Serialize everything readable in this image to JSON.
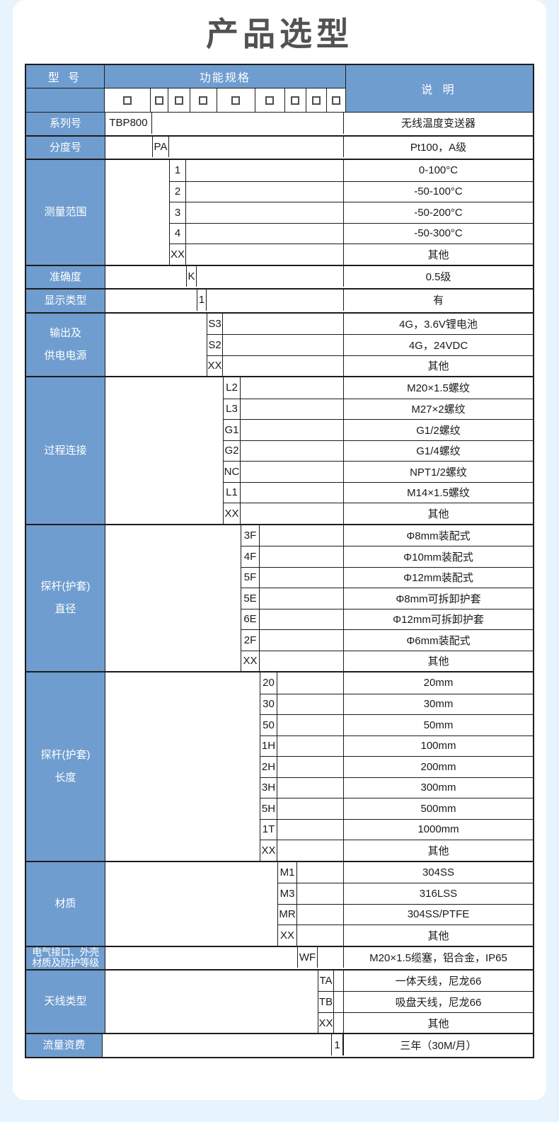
{
  "page": {
    "title": "产品选型"
  },
  "colors": {
    "accent_blue": "#6F9DCF",
    "page_background": "#E7F4FD",
    "card_background": "#FFFFFF",
    "border": "#1C1C1C",
    "title_gray": "#525252"
  },
  "table": {
    "header": {
      "model": "型 号",
      "spec": "功能规格",
      "desc": "说 明"
    },
    "checkbox_slots": 9,
    "groups": [
      {
        "label": "系列号",
        "items": [
          {
            "code": "TBP800",
            "desc": "无线温度变送器"
          }
        ]
      },
      {
        "label": "分度号",
        "items": [
          {
            "code": "PA",
            "desc": "Pt100，A级"
          }
        ]
      },
      {
        "label": "测量范围",
        "items": [
          {
            "code": "1",
            "desc": "0-100°C"
          },
          {
            "code": "2",
            "desc": "-50-100°C"
          },
          {
            "code": "3",
            "desc": "-50-200°C"
          },
          {
            "code": "4",
            "desc": "-50-300°C"
          },
          {
            "code": "XX",
            "desc": "其他"
          }
        ]
      },
      {
        "label": "准确度",
        "items": [
          {
            "code": "K",
            "desc": "0.5级"
          }
        ]
      },
      {
        "label": "显示类型",
        "items": [
          {
            "code": "1",
            "desc": "有"
          }
        ]
      },
      {
        "label": "输出及\n供电电源",
        "items": [
          {
            "code": "S3",
            "desc": "4G，3.6V锂电池"
          },
          {
            "code": "S2",
            "desc": "4G，24VDC"
          },
          {
            "code": "XX",
            "desc": "其他"
          }
        ]
      },
      {
        "label": "过程连接",
        "items": [
          {
            "code": "L2",
            "desc": "M20×1.5螺纹"
          },
          {
            "code": "L3",
            "desc": "M27×2螺纹"
          },
          {
            "code": "G1",
            "desc": "G1/2螺纹"
          },
          {
            "code": "G2",
            "desc": "G1/4螺纹"
          },
          {
            "code": "NC",
            "desc": "NPT1/2螺纹"
          },
          {
            "code": "L1",
            "desc": "M14×1.5螺纹"
          },
          {
            "code": "XX",
            "desc": "其他"
          }
        ]
      },
      {
        "label": "探杆(护套)\n直径",
        "items": [
          {
            "code": "3F",
            "desc": "Φ8mm装配式"
          },
          {
            "code": "4F",
            "desc": "Φ10mm装配式"
          },
          {
            "code": "5F",
            "desc": "Φ12mm装配式"
          },
          {
            "code": "5E",
            "desc": "Φ8mm可拆卸护套"
          },
          {
            "code": "6E",
            "desc": "Φ12mm可拆卸护套"
          },
          {
            "code": "2F",
            "desc": "Φ6mm装配式"
          },
          {
            "code": "XX",
            "desc": "其他"
          }
        ]
      },
      {
        "label": "探杆(护套)\n长度",
        "items": [
          {
            "code": "20",
            "desc": "20mm"
          },
          {
            "code": "30",
            "desc": "30mm"
          },
          {
            "code": "50",
            "desc": "50mm"
          },
          {
            "code": "1H",
            "desc": "100mm"
          },
          {
            "code": "2H",
            "desc": "200mm"
          },
          {
            "code": "3H",
            "desc": "300mm"
          },
          {
            "code": "5H",
            "desc": "500mm"
          },
          {
            "code": "1T",
            "desc": "1000mm"
          },
          {
            "code": "XX",
            "desc": "其他"
          }
        ]
      },
      {
        "label": "材质",
        "items": [
          {
            "code": "M1",
            "desc": "304SS"
          },
          {
            "code": "M3",
            "desc": "316LSS"
          },
          {
            "code": "MR",
            "desc": "304SS/PTFE"
          },
          {
            "code": "XX",
            "desc": "其他"
          }
        ]
      },
      {
        "label": "电气接口、外壳\n材质及防护等级",
        "tight": true,
        "items": [
          {
            "code": "WF",
            "desc": "M20×1.5缆塞，铝合金，IP65"
          }
        ]
      },
      {
        "label": "天线类型",
        "items": [
          {
            "code": "TA",
            "desc": "一体天线，尼龙66"
          },
          {
            "code": "TB",
            "desc": "吸盘天线，尼龙66"
          },
          {
            "code": "XX",
            "desc": "其他"
          }
        ]
      },
      {
        "label": "流量资费",
        "items": [
          {
            "code": "1",
            "desc": "三年（30M/月）"
          }
        ]
      }
    ]
  }
}
